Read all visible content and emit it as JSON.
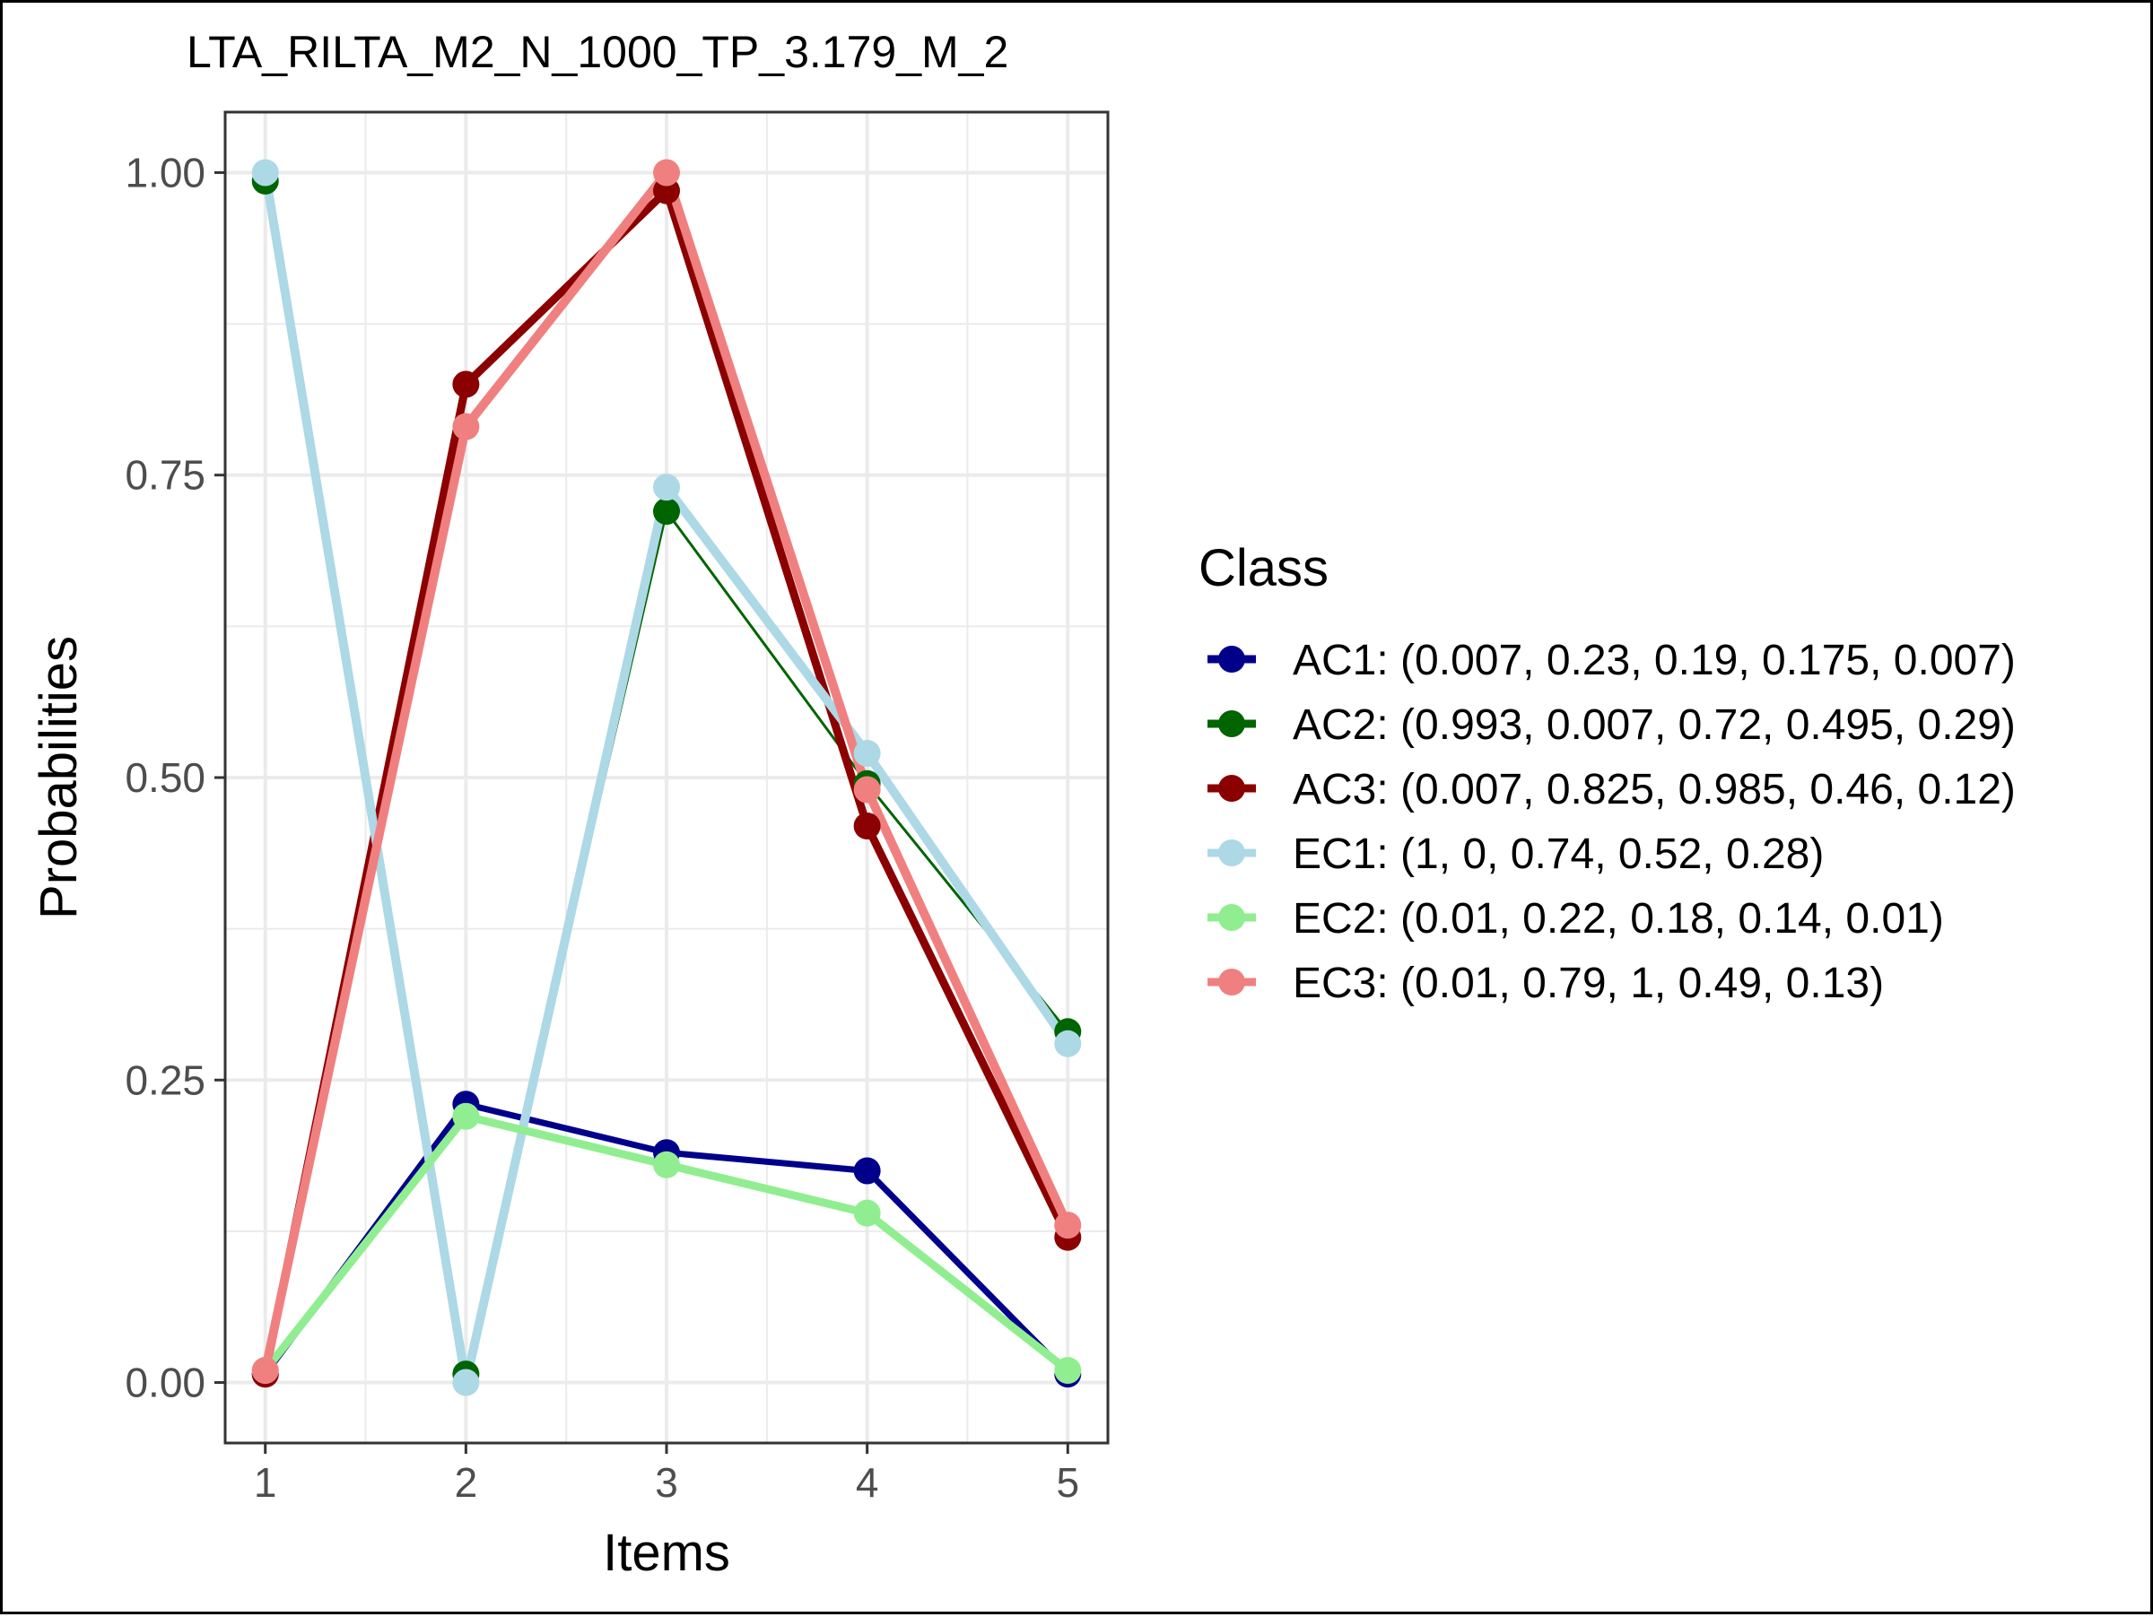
{
  "chart_data": {
    "type": "line",
    "title": "LTA_RILTA_M2_N_1000_TP_3.179_M_2",
    "xlabel": "Items",
    "ylabel": "Probabilities",
    "x": [
      1,
      2,
      3,
      4,
      5
    ],
    "x_tick_labels": [
      "1",
      "2",
      "3",
      "4",
      "5"
    ],
    "xlim": [
      0.8,
      5.2
    ],
    "ylim": [
      -0.05,
      1.05
    ],
    "y_ticks": [
      0,
      0.25,
      0.5,
      0.75,
      1
    ],
    "y_tick_labels": [
      "0.00",
      "0.25",
      "0.50",
      "0.75",
      "1.00"
    ],
    "grid": true,
    "legend": {
      "title": "Class",
      "position": "right"
    },
    "series": [
      {
        "name": "AC1: (0.007, 0.23, 0.19, 0.175, 0.007)",
        "values": [
          0.007,
          0.23,
          0.19,
          0.175,
          0.007
        ],
        "color": "#00008B"
      },
      {
        "name": "AC2: (0.993, 0.007, 0.72, 0.495, 0.29)",
        "values": [
          0.993,
          0.007,
          0.72,
          0.495,
          0.29
        ],
        "color": "#006400"
      },
      {
        "name": "AC3: (0.007, 0.825, 0.985, 0.46, 0.12)",
        "values": [
          0.007,
          0.825,
          0.985,
          0.46,
          0.12
        ],
        "color": "#8B0000"
      },
      {
        "name": "EC1: (1, 0, 0.74, 0.52, 0.28)",
        "values": [
          1,
          0,
          0.74,
          0.52,
          0.28
        ],
        "color": "#ADD8E6"
      },
      {
        "name": "EC2: (0.01, 0.22, 0.18, 0.14, 0.01)",
        "values": [
          0.01,
          0.22,
          0.18,
          0.14,
          0.01
        ],
        "color": "#90EE90"
      },
      {
        "name": "EC3: (0.01, 0.79, 1, 0.49, 0.13)",
        "values": [
          0.01,
          0.79,
          1,
          0.49,
          0.13
        ],
        "color": "#F08080"
      }
    ]
  }
}
